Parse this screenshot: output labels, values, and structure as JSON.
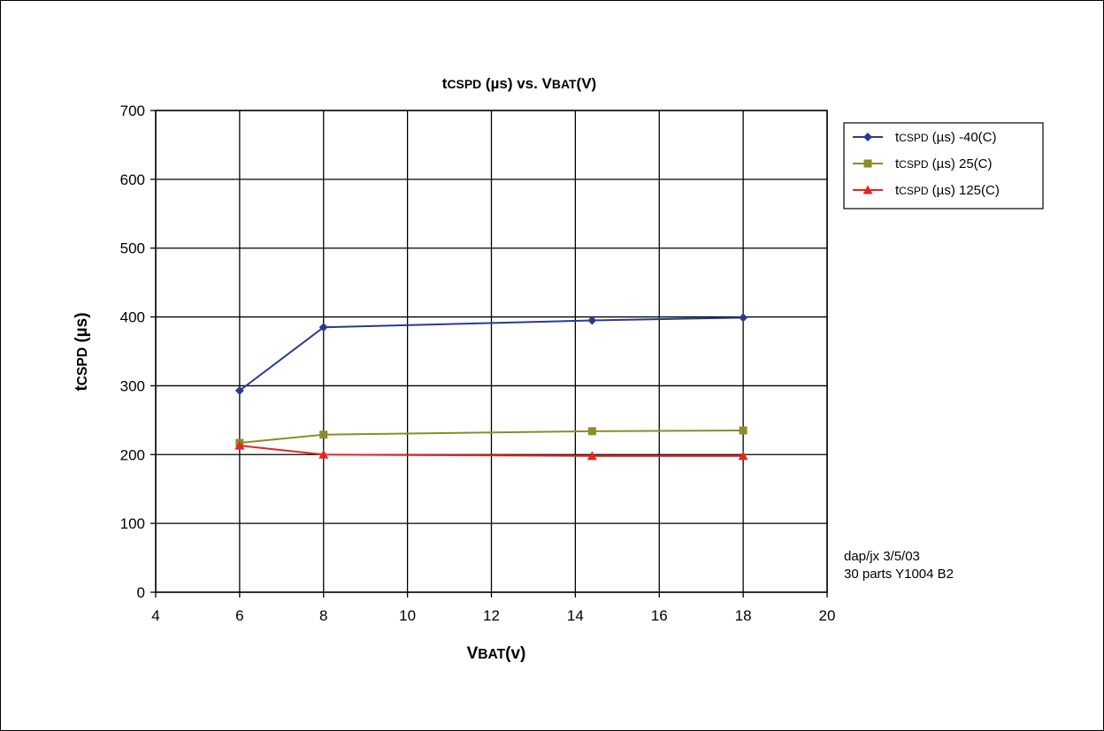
{
  "chart_data": {
    "type": "line",
    "title": "tCSPD (µs) vs. VBAT(V)",
    "xlabel": "VBAT(v)",
    "ylabel": "tCSPD (µs)",
    "xlim": [
      4,
      20
    ],
    "ylim": [
      0,
      700
    ],
    "xticks": [
      "4",
      "6",
      "8",
      "10",
      "12",
      "14",
      "16",
      "18",
      "20"
    ],
    "yticks": [
      "0",
      "100",
      "200",
      "300",
      "400",
      "500",
      "600",
      "700"
    ],
    "grid": true,
    "legend_position": "right",
    "series": [
      {
        "name": "tCSPD (µs) -40(C)",
        "color": "#2b3990",
        "marker": "diamond",
        "x": [
          6,
          8,
          14.4,
          18
        ],
        "y": [
          293,
          385,
          395,
          399
        ]
      },
      {
        "name": "tCSPD (µs) 25(C)",
        "color": "#8c8c2a",
        "marker": "square",
        "x": [
          6,
          8,
          14.4,
          18
        ],
        "y": [
          217,
          229,
          234,
          235
        ]
      },
      {
        "name": "tCSPD (µs) 125(C)",
        "color": "#e52420",
        "marker": "triangle",
        "x": [
          6,
          8,
          14.4,
          18
        ],
        "y": [
          213,
          200,
          198,
          198
        ]
      }
    ],
    "annotations": [
      "dap/jx 3/5/03",
      "30 parts Y1004 B2"
    ]
  }
}
